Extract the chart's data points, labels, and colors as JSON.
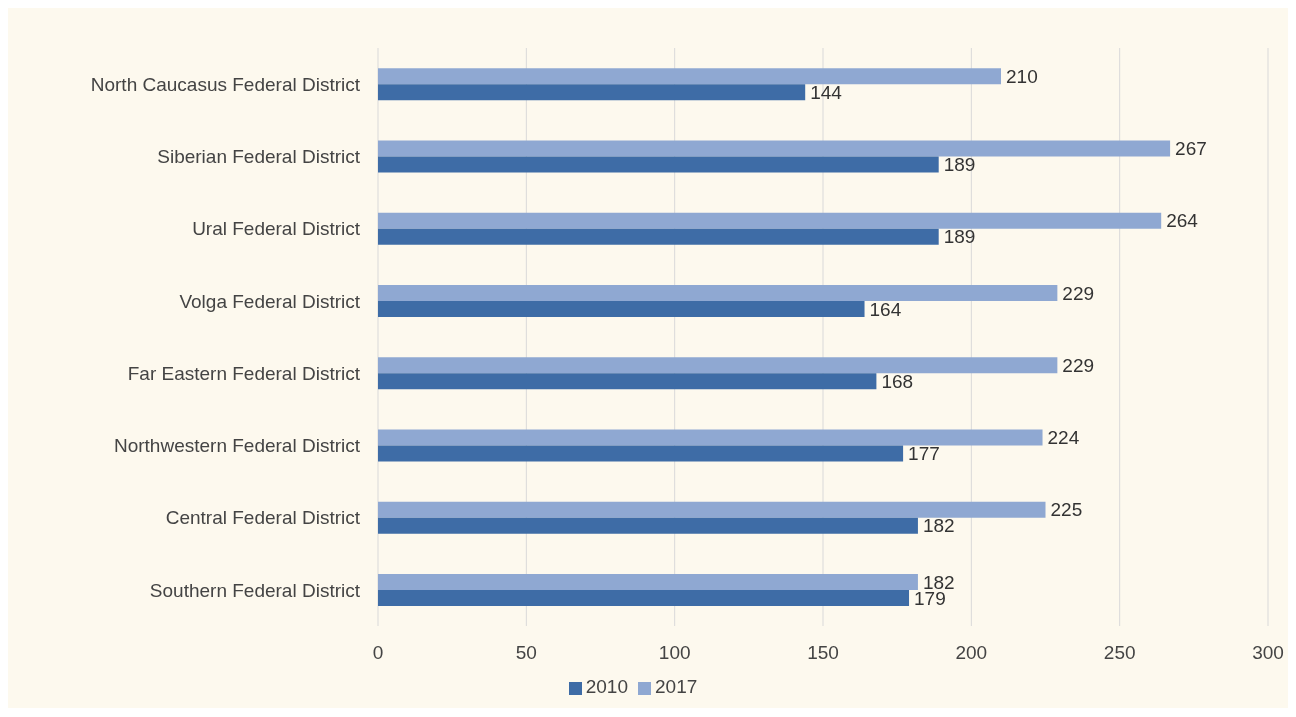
{
  "chart_data": {
    "type": "bar",
    "orientation": "horizontal",
    "categories": [
      "North Caucasus Federal District",
      "Siberian Federal District",
      "Ural Federal District",
      "Volga Federal District",
      "Far Eastern Federal District",
      "Northwestern Federal District",
      "Central Federal District",
      "Southern Federal District"
    ],
    "series": [
      {
        "name": "2017",
        "color": "#8fa8d2",
        "values": [
          210,
          267,
          264,
          229,
          229,
          224,
          225,
          182
        ]
      },
      {
        "name": "2010",
        "color": "#3e6ca6",
        "values": [
          144,
          189,
          189,
          164,
          168,
          177,
          182,
          179
        ]
      }
    ],
    "xlim": [
      0,
      300
    ],
    "xticks": [
      0,
      50,
      100,
      150,
      200,
      250,
      300
    ],
    "grid": "x",
    "legend": "bottom",
    "data_labels": true
  }
}
